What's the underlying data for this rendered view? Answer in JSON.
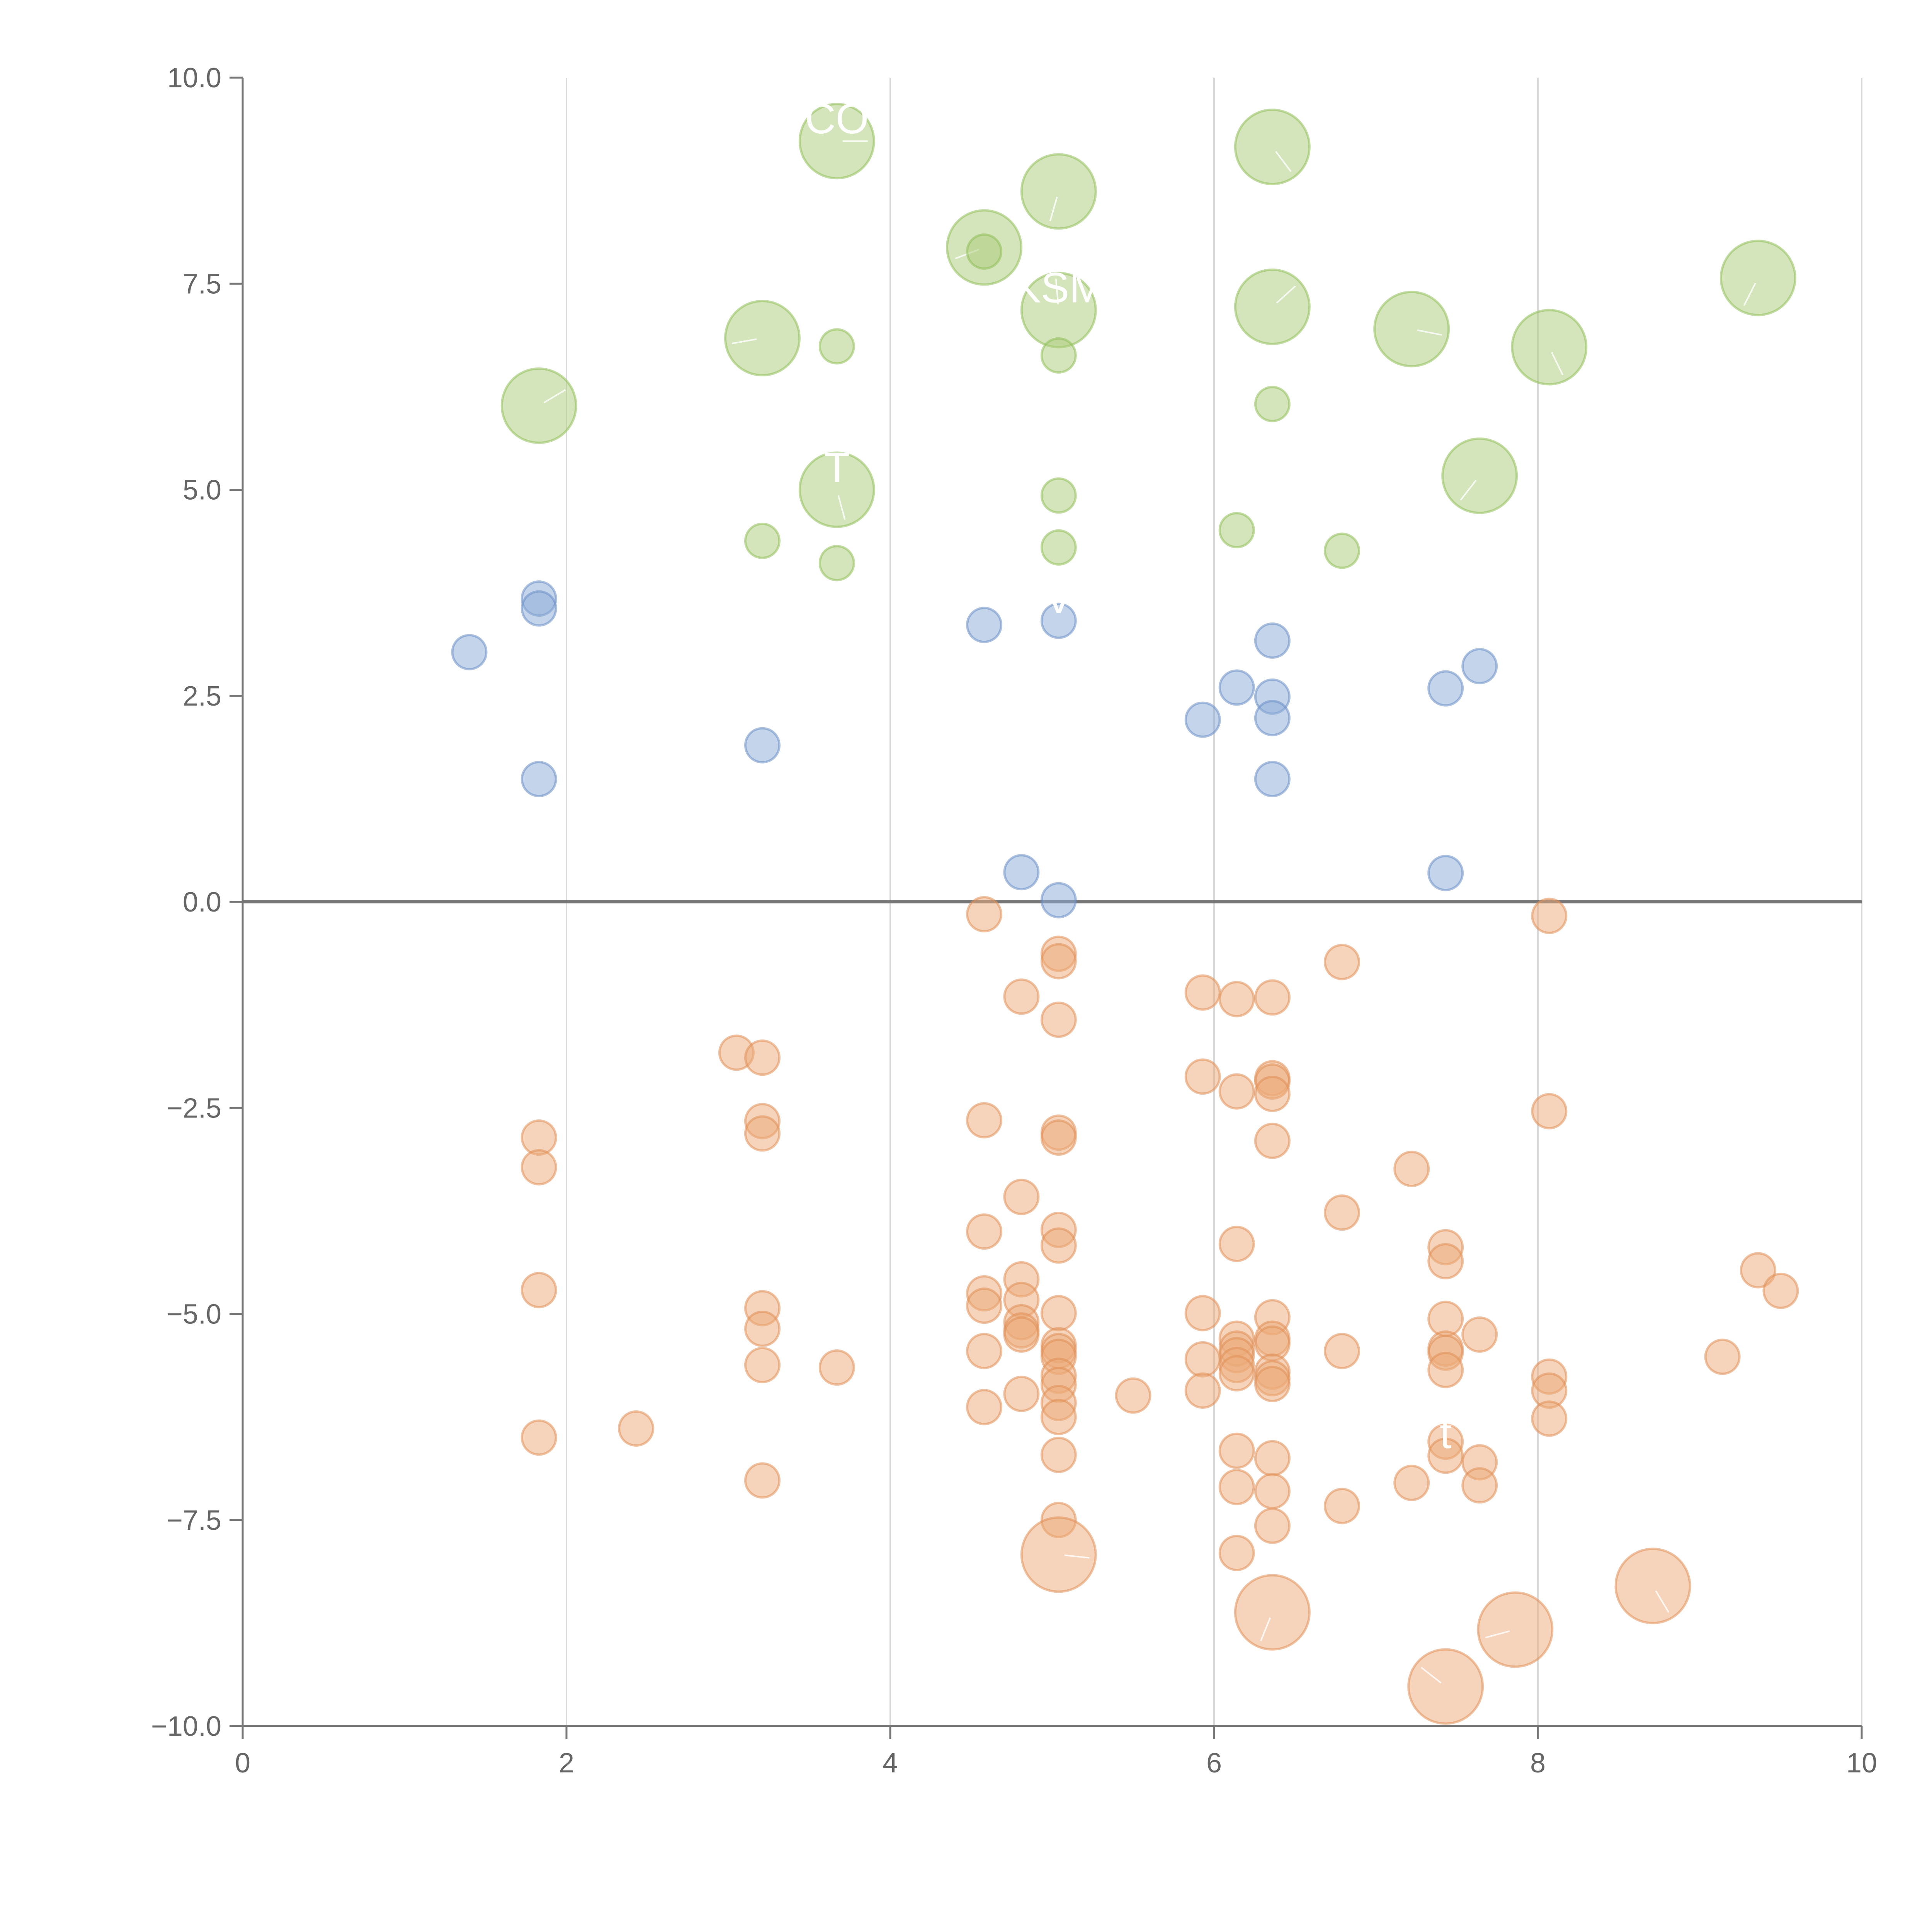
{
  "chart_data": {
    "type": "scatter",
    "title": "",
    "xlabel": "",
    "ylabel": "",
    "xlim": [
      0,
      10
    ],
    "ylim": [
      -10,
      10
    ],
    "x_ticks": [
      0,
      2,
      4,
      6,
      8,
      10
    ],
    "y_ticks": [
      -10,
      -7.5,
      -5,
      -2.5,
      0,
      2.5,
      5,
      7.5,
      10
    ],
    "x_tick_labels": [
      "0",
      "2",
      "4",
      "6",
      "8",
      "10"
    ],
    "y_tick_labels": [
      "−10.0",
      "−7.5",
      "−5.0",
      "−2.5",
      "0.0",
      "2.5",
      "5.0",
      "7.5",
      "10.0"
    ],
    "vertical_grid": true,
    "horizontal_grid": false,
    "zero_line": true,
    "series": [
      {
        "name": "green",
        "color": "#a9cc78",
        "stroke": "#8fbf5a",
        "points": [
          {
            "x": 3.67,
            "y": 9.23,
            "size": "large",
            "label": "CO"
          },
          {
            "x": 6.36,
            "y": 9.16,
            "size": "large"
          },
          {
            "x": 5.04,
            "y": 8.62,
            "size": "large"
          },
          {
            "x": 4.58,
            "y": 7.94,
            "size": "large"
          },
          {
            "x": 4.58,
            "y": 7.89,
            "size": "small"
          },
          {
            "x": 5.04,
            "y": 7.18,
            "size": "large",
            "label": "KSM"
          },
          {
            "x": 6.36,
            "y": 7.22,
            "size": "large"
          },
          {
            "x": 7.22,
            "y": 6.95,
            "size": "large"
          },
          {
            "x": 8.07,
            "y": 6.73,
            "size": "large"
          },
          {
            "x": 9.36,
            "y": 7.57,
            "size": "large"
          },
          {
            "x": 3.21,
            "y": 6.84,
            "size": "large"
          },
          {
            "x": 3.67,
            "y": 6.74,
            "size": "small"
          },
          {
            "x": 5.04,
            "y": 6.63,
            "size": "small"
          },
          {
            "x": 1.83,
            "y": 6.02,
            "size": "large"
          },
          {
            "x": 6.36,
            "y": 6.04,
            "size": "small"
          },
          {
            "x": 3.67,
            "y": 5.0,
            "size": "large",
            "label": "T"
          },
          {
            "x": 7.64,
            "y": 5.17,
            "size": "large"
          },
          {
            "x": 5.04,
            "y": 4.93,
            "size": "small"
          },
          {
            "x": 6.14,
            "y": 4.51,
            "size": "small"
          },
          {
            "x": 3.21,
            "y": 4.38,
            "size": "small"
          },
          {
            "x": 5.04,
            "y": 4.3,
            "size": "small"
          },
          {
            "x": 6.79,
            "y": 4.26,
            "size": "small"
          },
          {
            "x": 3.67,
            "y": 4.11,
            "size": "small"
          }
        ]
      },
      {
        "name": "blue",
        "color": "#8aa9d6",
        "stroke": "#6b8fc7",
        "points": [
          {
            "x": 1.83,
            "y": 3.68
          },
          {
            "x": 1.83,
            "y": 3.56
          },
          {
            "x": 1.4,
            "y": 3.03
          },
          {
            "x": 4.58,
            "y": 3.36
          },
          {
            "x": 5.04,
            "y": 3.41,
            "label": "V"
          },
          {
            "x": 6.36,
            "y": 3.17
          },
          {
            "x": 7.64,
            "y": 2.86
          },
          {
            "x": 6.14,
            "y": 2.6
          },
          {
            "x": 6.36,
            "y": 2.49
          },
          {
            "x": 7.43,
            "y": 2.59
          },
          {
            "x": 5.93,
            "y": 2.21
          },
          {
            "x": 6.36,
            "y": 2.23
          },
          {
            "x": 3.21,
            "y": 1.9
          },
          {
            "x": 1.83,
            "y": 1.49
          },
          {
            "x": 6.36,
            "y": 1.49
          },
          {
            "x": 4.81,
            "y": 0.36
          },
          {
            "x": 7.43,
            "y": 0.35
          },
          {
            "x": 5.04,
            "y": 0.02
          }
        ]
      },
      {
        "name": "orange",
        "color": "#ebaa78",
        "stroke": "#e09058",
        "points": [
          {
            "x": 4.58,
            "y": -0.15
          },
          {
            "x": 8.07,
            "y": -0.17
          },
          {
            "x": 5.04,
            "y": -0.63
          },
          {
            "x": 5.04,
            "y": -0.72
          },
          {
            "x": 6.79,
            "y": -0.73
          },
          {
            "x": 5.93,
            "y": -1.1
          },
          {
            "x": 4.81,
            "y": -1.15
          },
          {
            "x": 6.14,
            "y": -1.18
          },
          {
            "x": 6.36,
            "y": -1.16
          },
          {
            "x": 5.04,
            "y": -1.43
          },
          {
            "x": 3.05,
            "y": -1.83
          },
          {
            "x": 3.21,
            "y": -1.89
          },
          {
            "x": 5.93,
            "y": -2.12
          },
          {
            "x": 6.36,
            "y": -2.14
          },
          {
            "x": 6.36,
            "y": -2.18
          },
          {
            "x": 6.14,
            "y": -2.3
          },
          {
            "x": 6.36,
            "y": -2.33
          },
          {
            "x": 8.07,
            "y": -2.54
          },
          {
            "x": 4.58,
            "y": -2.65
          },
          {
            "x": 3.21,
            "y": -2.66
          },
          {
            "x": 5.04,
            "y": -2.8
          },
          {
            "x": 5.04,
            "y": -2.86
          },
          {
            "x": 3.21,
            "y": -2.81
          },
          {
            "x": 1.83,
            "y": -2.86
          },
          {
            "x": 6.36,
            "y": -2.9
          },
          {
            "x": 1.83,
            "y": -3.22
          },
          {
            "x": 7.22,
            "y": -3.24
          },
          {
            "x": 4.81,
            "y": -3.58
          },
          {
            "x": 6.79,
            "y": -3.77
          },
          {
            "x": 4.58,
            "y": -4.0
          },
          {
            "x": 5.04,
            "y": -3.98
          },
          {
            "x": 5.04,
            "y": -4.17
          },
          {
            "x": 6.14,
            "y": -4.15
          },
          {
            "x": 7.43,
            "y": -4.19
          },
          {
            "x": 7.43,
            "y": -4.36
          },
          {
            "x": 9.36,
            "y": -4.47
          },
          {
            "x": 4.81,
            "y": -4.58
          },
          {
            "x": 1.83,
            "y": -4.71
          },
          {
            "x": 9.5,
            "y": -4.72
          },
          {
            "x": 4.58,
            "y": -4.75
          },
          {
            "x": 4.81,
            "y": -4.83
          },
          {
            "x": 4.58,
            "y": -4.9
          },
          {
            "x": 3.21,
            "y": -4.93
          },
          {
            "x": 5.93,
            "y": -4.99
          },
          {
            "x": 5.04,
            "y": -4.99
          },
          {
            "x": 6.36,
            "y": -5.04
          },
          {
            "x": 7.43,
            "y": -5.06
          },
          {
            "x": 4.81,
            "y": -5.1
          },
          {
            "x": 3.21,
            "y": -5.18
          },
          {
            "x": 4.81,
            "y": -5.2
          },
          {
            "x": 4.81,
            "y": -5.25
          },
          {
            "x": 7.64,
            "y": -5.25
          },
          {
            "x": 6.14,
            "y": -5.3
          },
          {
            "x": 6.36,
            "y": -5.3
          },
          {
            "x": 6.36,
            "y": -5.36
          },
          {
            "x": 5.04,
            "y": -5.38
          },
          {
            "x": 6.14,
            "y": -5.42
          },
          {
            "x": 5.04,
            "y": -5.45
          },
          {
            "x": 4.58,
            "y": -5.45
          },
          {
            "x": 6.79,
            "y": -5.45
          },
          {
            "x": 7.43,
            "y": -5.42
          },
          {
            "x": 7.43,
            "y": -5.47
          },
          {
            "x": 6.14,
            "y": -5.5
          },
          {
            "x": 5.04,
            "y": -5.52
          },
          {
            "x": 9.14,
            "y": -5.52
          },
          {
            "x": 5.93,
            "y": -5.55
          },
          {
            "x": 6.14,
            "y": -5.62
          },
          {
            "x": 3.21,
            "y": -5.62
          },
          {
            "x": 3.67,
            "y": -5.65
          },
          {
            "x": 7.43,
            "y": -5.68
          },
          {
            "x": 6.36,
            "y": -5.7
          },
          {
            "x": 6.14,
            "y": -5.72
          },
          {
            "x": 5.04,
            "y": -5.75
          },
          {
            "x": 8.07,
            "y": -5.76
          },
          {
            "x": 6.36,
            "y": -5.78
          },
          {
            "x": 6.36,
            "y": -5.85
          },
          {
            "x": 5.04,
            "y": -5.86
          },
          {
            "x": 5.93,
            "y": -5.93
          },
          {
            "x": 8.07,
            "y": -5.93
          },
          {
            "x": 4.81,
            "y": -5.97
          },
          {
            "x": 5.5,
            "y": -5.99
          },
          {
            "x": 5.04,
            "y": -6.08
          },
          {
            "x": 4.58,
            "y": -6.13
          },
          {
            "x": 5.04,
            "y": -6.25
          },
          {
            "x": 8.07,
            "y": -6.27
          },
          {
            "x": 2.43,
            "y": -6.39
          },
          {
            "x": 1.83,
            "y": -6.5
          },
          {
            "x": 7.43,
            "y": -6.55
          },
          {
            "x": 6.14,
            "y": -6.66
          },
          {
            "x": 5.04,
            "y": -6.71
          },
          {
            "x": 7.43,
            "y": -6.72,
            "label": "t"
          },
          {
            "x": 6.36,
            "y": -6.75
          },
          {
            "x": 7.64,
            "y": -6.8
          },
          {
            "x": 3.21,
            "y": -7.02
          },
          {
            "x": 7.22,
            "y": -7.05
          },
          {
            "x": 7.64,
            "y": -7.08
          },
          {
            "x": 6.14,
            "y": -7.1
          },
          {
            "x": 6.36,
            "y": -7.15
          },
          {
            "x": 6.79,
            "y": -7.33
          },
          {
            "x": 5.04,
            "y": -7.5
          },
          {
            "x": 6.36,
            "y": -7.57
          },
          {
            "x": 6.14,
            "y": -7.9
          },
          {
            "x": 5.04,
            "y": -7.92,
            "size": "large"
          },
          {
            "x": 8.71,
            "y": -8.3,
            "size": "large"
          },
          {
            "x": 6.36,
            "y": -8.62,
            "size": "large"
          },
          {
            "x": 7.86,
            "y": -8.83,
            "size": "large"
          },
          {
            "x": 7.43,
            "y": -9.52,
            "size": "large"
          }
        ]
      }
    ]
  }
}
